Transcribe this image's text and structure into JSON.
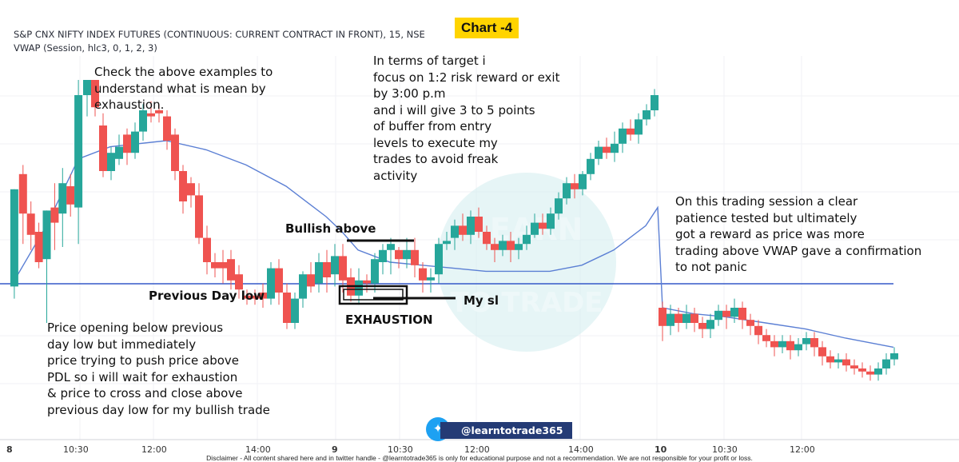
{
  "header": {
    "symbol_line": "S&P CNX NIFTY INDEX FUTURES (CONTINUOUS: CURRENT CONTRACT IN FRONT), 15, NSE",
    "indicator_line": "VWAP (Session, hlc3, 0, 1, 2, 3)",
    "chart_badge": "Chart -4"
  },
  "notes": {
    "exhaustion_intro": [
      "Check the above examples to",
      "understand what is mean by",
      "exhaustion."
    ],
    "target": [
      "In terms of target i",
      "focus on 1:2 risk reward or exit",
      "by 3:00 p.m",
      "and i will give 3 to 5 points",
      "of buffer from entry",
      "levels to execute my",
      "trades to avoid freak",
      "activity"
    ],
    "session": [
      "On this trading session a clear",
      "patience tested but ultimately",
      "got a reward as price was more",
      "trading above VWAP gave a confirmation",
      "to not panic"
    ],
    "opening": [
      "Price opening below previous",
      "day low but immediately",
      "price trying to push price above",
      "PDL so i will wait for exhaustion",
      "& price to cross and close above",
      "previous day low for my bullish trade"
    ],
    "bullish_above": "Bullish above",
    "previous_day_low": "Previous Day low",
    "exhaustion_label": "EXHAUSTION",
    "my_sl": "My sl"
  },
  "x_axis_ticks": [
    "8",
    "10:30",
    "12:00",
    "14:00",
    "9",
    "10:30",
    "12:00",
    "14:00",
    "10",
    "10:30",
    "12:00"
  ],
  "watermark": {
    "line1": "LEARN",
    "line2": "TO TRADE"
  },
  "twitter_handle": "@learntotrade365",
  "disclaimer": "Disclaimer - All content shared here and in twitter handle - @learntotrade365 is only for educational purpose and not a recommendation. We are not responsible for your profit or loss.",
  "colors": {
    "bull": "#26a69a",
    "bear": "#ef5350",
    "vwap": "#5b7fd4",
    "pdl_line": "#3559c9",
    "badge": "#ffd400"
  },
  "chart_data": {
    "type": "candlestick",
    "timeframe": "15",
    "days": [
      "8",
      "9",
      "10"
    ],
    "y_domain": [
      0,
      100
    ],
    "previous_day_low": 50,
    "candles": [
      [
        9.9,
        32,
        64,
        28,
        64
      ],
      [
        20.8,
        69,
        56,
        46,
        72
      ],
      [
        30.7,
        56,
        49,
        44,
        60
      ],
      [
        40.6,
        50,
        40,
        38,
        53
      ],
      [
        50.5,
        41,
        57,
        20,
        57
      ],
      [
        60.4,
        58,
        53,
        44,
        66
      ],
      [
        70.3,
        56,
        66,
        45,
        71
      ],
      [
        80.2,
        65,
        59,
        55,
        69
      ],
      [
        90.1,
        58,
        95,
        46,
        100
      ],
      [
        101,
        95,
        100,
        88,
        100
      ],
      [
        111,
        100,
        91,
        88,
        100
      ],
      [
        121,
        85,
        70,
        68,
        89
      ],
      [
        131,
        70,
        76,
        67,
        78
      ],
      [
        141,
        74,
        78,
        72,
        82
      ],
      [
        151,
        82,
        76,
        72,
        84
      ],
      [
        161,
        76,
        83,
        74,
        86
      ],
      [
        171,
        83,
        90,
        80,
        92
      ],
      [
        181,
        89,
        88,
        86,
        93
      ],
      [
        191,
        90,
        89,
        86,
        92
      ],
      [
        201,
        88,
        80,
        77,
        90
      ],
      [
        211,
        82,
        70,
        67,
        84
      ],
      [
        221,
        70,
        60,
        56,
        72
      ],
      [
        231,
        66,
        62,
        58,
        68
      ],
      [
        241,
        62,
        48,
        46,
        66
      ],
      [
        251,
        48,
        40,
        36,
        52
      ],
      [
        261,
        40,
        38,
        35,
        43
      ],
      [
        271,
        40,
        38,
        33,
        44
      ],
      [
        281,
        41,
        34,
        31,
        44
      ],
      [
        291,
        36,
        31,
        28,
        39
      ],
      [
        301,
        29,
        28,
        26,
        31
      ],
      [
        311,
        29,
        28,
        26,
        31
      ],
      [
        321,
        30,
        28,
        25,
        33
      ],
      [
        331,
        28,
        38,
        26,
        40
      ],
      [
        341,
        38,
        30,
        26,
        41
      ],
      [
        351,
        30,
        20,
        18,
        33
      ],
      [
        361,
        20,
        28,
        18,
        30
      ],
      [
        371,
        28,
        36,
        25,
        37
      ],
      [
        381,
        36,
        32,
        30,
        40
      ],
      [
        391,
        33,
        40,
        30,
        43
      ],
      [
        401,
        40,
        35,
        30,
        44
      ],
      [
        411,
        36,
        42,
        32,
        46
      ],
      [
        421,
        42,
        34,
        30,
        46
      ],
      [
        431,
        35,
        29,
        27,
        38
      ],
      [
        441,
        29,
        34,
        26,
        38
      ],
      [
        451,
        34,
        33,
        30,
        36
      ],
      [
        461,
        33,
        41,
        30,
        43
      ],
      [
        471,
        40,
        44,
        36,
        46
      ],
      [
        481,
        44,
        46,
        36,
        48
      ],
      [
        491,
        44,
        41,
        38,
        45
      ],
      [
        501,
        41,
        44,
        38,
        48
      ],
      [
        511,
        44,
        39,
        35,
        48
      ],
      [
        521,
        38,
        34,
        30,
        40
      ],
      [
        531,
        34,
        35,
        30,
        38
      ],
      [
        541,
        36,
        46,
        33,
        48
      ],
      [
        551,
        46,
        47,
        44,
        50
      ],
      [
        561,
        48,
        52,
        44,
        54
      ],
      [
        571,
        52,
        49,
        47,
        56
      ],
      [
        581,
        49,
        55,
        46,
        57
      ],
      [
        591,
        55,
        50,
        48,
        58
      ],
      [
        601,
        50,
        46,
        44,
        52
      ],
      [
        611,
        46,
        44,
        40,
        48
      ],
      [
        621,
        44,
        47,
        42,
        49
      ],
      [
        631,
        47,
        44,
        40,
        50
      ],
      [
        641,
        44,
        46,
        41,
        48
      ],
      [
        651,
        46,
        49,
        44,
        52
      ],
      [
        661,
        49,
        53,
        48,
        56
      ],
      [
        671,
        53,
        51,
        49,
        56
      ],
      [
        681,
        51,
        56,
        49,
        58
      ],
      [
        691,
        56,
        61,
        54,
        63
      ],
      [
        701,
        61,
        66,
        59,
        68
      ],
      [
        711,
        66,
        64,
        61,
        69
      ],
      [
        721,
        64,
        69,
        62,
        70
      ],
      [
        731,
        69,
        74,
        67,
        76
      ],
      [
        741,
        74,
        78,
        72,
        80
      ],
      [
        751,
        78,
        76,
        74,
        81
      ],
      [
        761,
        76,
        79,
        73,
        83
      ],
      [
        771,
        79,
        84,
        76,
        86
      ],
      [
        781,
        84,
        82,
        80,
        87
      ],
      [
        791,
        82,
        87,
        79,
        89
      ],
      [
        801,
        87,
        90,
        85,
        92
      ],
      [
        811,
        90,
        95,
        88,
        97
      ],
      [
        821,
        25,
        19,
        14,
        27
      ],
      [
        831,
        19,
        23,
        16,
        26
      ],
      [
        841,
        23,
        20,
        17,
        25
      ],
      [
        851,
        20,
        23,
        18,
        26
      ],
      [
        861,
        23,
        20,
        17,
        25
      ],
      [
        871,
        20,
        18,
        15,
        22
      ],
      [
        881,
        18,
        21,
        15,
        23
      ],
      [
        891,
        21,
        24,
        19,
        26
      ],
      [
        901,
        24,
        22,
        18,
        26
      ],
      [
        911,
        22,
        25,
        20,
        28
      ],
      [
        921,
        25,
        21,
        18,
        27
      ],
      [
        931,
        21,
        19,
        16,
        23
      ],
      [
        941,
        19,
        16,
        13,
        21
      ],
      [
        951,
        16,
        14,
        12,
        18
      ],
      [
        961,
        14,
        12,
        9,
        16
      ],
      [
        971,
        12,
        14,
        10,
        16
      ],
      [
        981,
        14,
        11,
        8,
        16
      ],
      [
        991,
        11,
        13,
        9,
        15
      ],
      [
        1001,
        13,
        15,
        11,
        17
      ],
      [
        1011,
        15,
        12,
        9,
        17
      ],
      [
        1021,
        12,
        9,
        6,
        14
      ],
      [
        1031,
        9,
        7,
        5,
        11
      ],
      [
        1041,
        7,
        8,
        5,
        10
      ],
      [
        1051,
        8,
        6,
        4,
        10
      ],
      [
        1061,
        6,
        5,
        3,
        8
      ],
      [
        1071,
        5,
        4,
        2,
        7
      ],
      [
        1081,
        4,
        3,
        1,
        6
      ],
      [
        1091,
        3,
        5,
        1,
        7
      ],
      [
        1101,
        5,
        8,
        3,
        10
      ],
      [
        1111,
        8,
        10,
        6,
        12
      ]
    ],
    "vwap": [
      [
        10,
        34
      ],
      [
        50,
        52
      ],
      [
        90,
        74
      ],
      [
        130,
        78
      ],
      [
        200,
        80
      ],
      [
        250,
        77
      ],
      [
        300,
        72
      ],
      [
        350,
        65
      ],
      [
        400,
        55
      ],
      [
        420,
        50
      ],
      [
        440,
        44
      ],
      [
        480,
        40
      ],
      [
        520,
        39
      ],
      [
        560,
        38
      ],
      [
        600,
        37
      ],
      [
        640,
        37
      ],
      [
        680,
        37
      ],
      [
        720,
        39
      ],
      [
        760,
        44
      ],
      [
        800,
        52
      ],
      [
        815,
        58
      ],
      [
        821,
        25
      ],
      [
        860,
        23
      ],
      [
        900,
        22
      ],
      [
        950,
        20
      ],
      [
        1000,
        18
      ],
      [
        1050,
        15
      ],
      [
        1110,
        12
      ]
    ]
  }
}
